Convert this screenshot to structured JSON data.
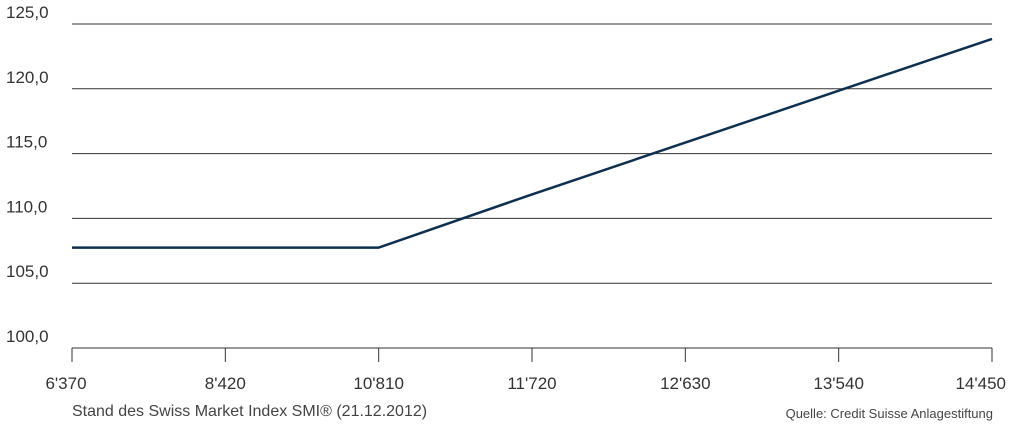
{
  "chart_data": {
    "type": "line",
    "categories": [
      "6'370",
      "8'420",
      "10'810",
      "11'720",
      "12'630",
      "13'540",
      "14'450"
    ],
    "y_ticks": [
      "100,0",
      "105,0",
      "110,0",
      "115,0",
      "120,0",
      "125,0"
    ],
    "ylim": [
      100,
      125
    ],
    "grid": "horizontal",
    "series": [
      {
        "values": [
          107.75,
          107.75,
          107.75,
          111.85,
          115.85,
          119.85,
          123.85
        ],
        "color": "#0e3050"
      }
    ],
    "xlabel": "Stand des Swiss Market Index SMI® (21.12.2012)",
    "source": "Quelle: Credit Suisse Anlagestiftung",
    "colors": {
      "line": "#0e3050",
      "grid": "#333333",
      "text": "#333333"
    }
  }
}
